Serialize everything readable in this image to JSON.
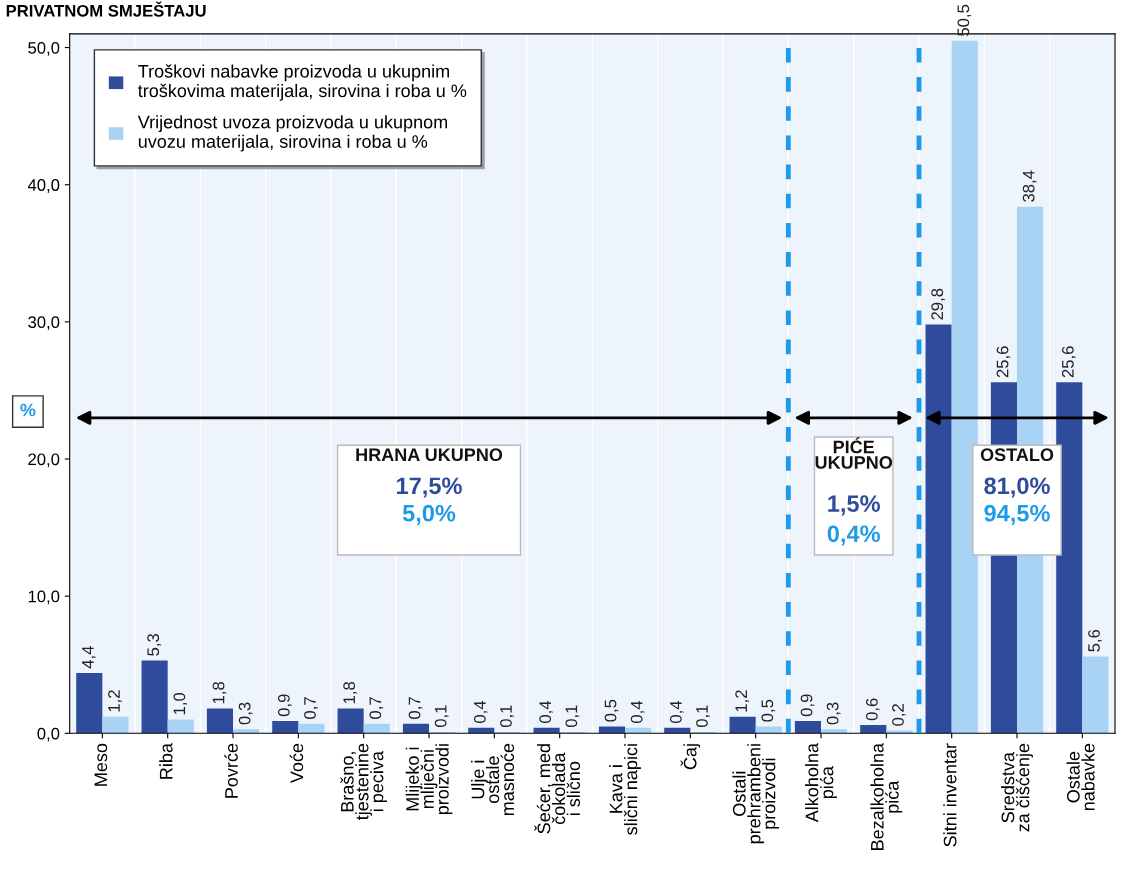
{
  "chart_data": {
    "type": "bar",
    "title": "PRIVATNOM SMJEŠTAJU",
    "ylabel": "%",
    "categories": [
      "Meso",
      "Riba",
      "Povrće",
      "Voće",
      "Brašno,\ntjestenine\ni peciva",
      "Mlijeko i\nmliječni\nproizvodi",
      "Ulje i\nostale\nmasnoće",
      "Šećer, med\nčokolada\ni slično",
      "Kava i\nslični napici",
      "Čaj",
      "Ostali\nprehrambeni\nproizvodi",
      "Alkoholna\npića",
      "Bezalkoholna\npića",
      "Sitni inventar",
      "Sredstva\nza čišćenje",
      "Ostale\nnabavke"
    ],
    "series": [
      {
        "name": "Troškovi nabavke proizvoda u ukupnim\ntroškovima materijala, sirovina i roba u %",
        "color": "#2f4c9c",
        "values": [
          4.4,
          5.3,
          1.8,
          0.9,
          1.8,
          0.7,
          0.4,
          0.4,
          0.5,
          0.4,
          1.2,
          0.9,
          0.6,
          29.8,
          25.6,
          25.6
        ],
        "value_labels": [
          "4,4",
          "5,3",
          "1,8",
          "0,9",
          "1,8",
          "0,7",
          "0,4",
          "0,4",
          "0,5",
          "0,4",
          "1,2",
          "0,9",
          "0,6",
          "29,8",
          "25,6",
          "25,6"
        ]
      },
      {
        "name": "Vrijednost uvoza proizvoda u ukupnom\nuvozu materijala, sirovina i roba u %",
        "color": "#a9d3f5",
        "values": [
          1.2,
          1.0,
          0.3,
          0.7,
          0.7,
          0.1,
          0.1,
          0.1,
          0.4,
          0.1,
          0.5,
          0.3,
          0.2,
          50.5,
          38.4,
          5.6
        ],
        "value_labels": [
          "1,2",
          "1,0",
          "0,3",
          "0,7",
          "0,7",
          "0,1",
          "0,1",
          "0,1",
          "0,4",
          "0,1",
          "0,5",
          "0,3",
          "0,2",
          "50,5",
          "38,4",
          "5,6"
        ]
      }
    ],
    "ylim": [
      0,
      51
    ],
    "yticks": [
      {
        "value": 0,
        "label": "0,0"
      },
      {
        "value": 10,
        "label": "10,0"
      },
      {
        "value": 20,
        "label": "20,0"
      },
      {
        "value": 30,
        "label": "30,0"
      },
      {
        "value": 40,
        "label": "40,0"
      },
      {
        "value": 50,
        "label": "50,0"
      }
    ],
    "annotations": [
      "HRANA UKUPNO",
      "17,5%",
      "5,0%",
      "PIĆE\nUKUPNO",
      "1,5%",
      "0,4%",
      "OSTALO",
      "81,0%",
      "94,5%"
    ],
    "legend": "top left"
  }
}
